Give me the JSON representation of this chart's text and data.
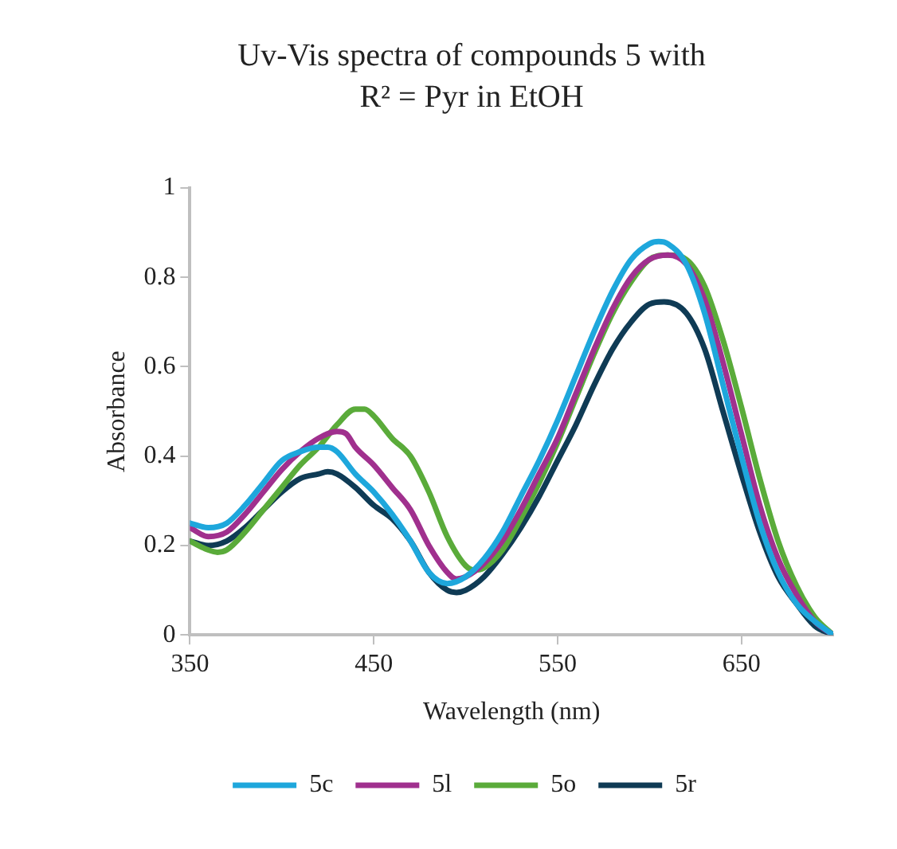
{
  "chart_data": {
    "type": "line",
    "title": "Uv-Vis spectra of compounds 5 with R² = Pyr in EtOH",
    "xlabel": "Wavelength (nm)",
    "ylabel": "Absorbance",
    "xlim": [
      350,
      700
    ],
    "xticks": [
      350,
      450,
      550,
      650
    ],
    "ylim": [
      0,
      1
    ],
    "yticks": [
      0,
      0.2,
      0.4,
      0.6,
      0.8,
      1
    ],
    "legend": "bottom",
    "marker": "none",
    "line_style": "solid",
    "series": [
      {
        "name": "5c",
        "color": "#1ea7dc",
        "x": [
          350,
          360,
          370,
          380,
          390,
          400,
          410,
          420,
          425,
          430,
          440,
          450,
          460,
          470,
          480,
          490,
          500,
          510,
          520,
          530,
          540,
          550,
          560,
          570,
          580,
          590,
          600,
          605,
          610,
          620,
          630,
          640,
          650,
          660,
          670,
          680,
          690,
          700
        ],
        "values": [
          0.25,
          0.24,
          0.25,
          0.29,
          0.34,
          0.39,
          0.41,
          0.42,
          0.42,
          0.41,
          0.36,
          0.32,
          0.27,
          0.21,
          0.14,
          0.115,
          0.13,
          0.17,
          0.23,
          0.31,
          0.39,
          0.48,
          0.58,
          0.68,
          0.77,
          0.84,
          0.875,
          0.88,
          0.875,
          0.83,
          0.72,
          0.56,
          0.4,
          0.25,
          0.14,
          0.07,
          0.03,
          0
        ]
      },
      {
        "name": "5l",
        "color": "#a0308e",
        "x": [
          350,
          360,
          370,
          380,
          390,
          400,
          410,
          420,
          430,
          435,
          440,
          450,
          460,
          470,
          480,
          490,
          495,
          500,
          510,
          520,
          530,
          540,
          550,
          560,
          570,
          580,
          590,
          600,
          610,
          620,
          630,
          640,
          650,
          660,
          670,
          680,
          690,
          700
        ],
        "values": [
          0.24,
          0.22,
          0.23,
          0.27,
          0.32,
          0.37,
          0.41,
          0.44,
          0.455,
          0.45,
          0.42,
          0.38,
          0.33,
          0.28,
          0.2,
          0.14,
          0.125,
          0.13,
          0.16,
          0.21,
          0.28,
          0.36,
          0.44,
          0.54,
          0.64,
          0.73,
          0.8,
          0.84,
          0.85,
          0.83,
          0.75,
          0.61,
          0.45,
          0.29,
          0.17,
          0.09,
          0.03,
          0
        ]
      },
      {
        "name": "5o",
        "color": "#5aab3a",
        "x": [
          350,
          360,
          365,
          370,
          380,
          390,
          400,
          410,
          420,
          430,
          440,
          445,
          450,
          460,
          470,
          480,
          490,
          500,
          505,
          510,
          520,
          530,
          540,
          550,
          560,
          570,
          580,
          590,
          600,
          610,
          620,
          630,
          640,
          650,
          660,
          670,
          680,
          690,
          700
        ],
        "values": [
          0.21,
          0.19,
          0.185,
          0.19,
          0.23,
          0.28,
          0.33,
          0.38,
          0.42,
          0.47,
          0.505,
          0.505,
          0.49,
          0.44,
          0.4,
          0.32,
          0.22,
          0.155,
          0.145,
          0.15,
          0.19,
          0.26,
          0.34,
          0.43,
          0.53,
          0.63,
          0.72,
          0.79,
          0.84,
          0.85,
          0.84,
          0.78,
          0.66,
          0.51,
          0.35,
          0.21,
          0.11,
          0.04,
          0
        ]
      },
      {
        "name": "5r",
        "color": "#0f3b55",
        "x": [
          350,
          360,
          370,
          380,
          390,
          400,
          410,
          420,
          425,
          430,
          440,
          450,
          460,
          470,
          480,
          490,
          495,
          500,
          510,
          520,
          530,
          540,
          550,
          560,
          570,
          580,
          590,
          600,
          608,
          620,
          630,
          640,
          650,
          660,
          670,
          680,
          690,
          700
        ],
        "values": [
          0.21,
          0.2,
          0.21,
          0.24,
          0.28,
          0.32,
          0.35,
          0.36,
          0.365,
          0.36,
          0.33,
          0.29,
          0.26,
          0.21,
          0.14,
          0.1,
          0.095,
          0.1,
          0.13,
          0.18,
          0.24,
          0.31,
          0.39,
          0.47,
          0.56,
          0.64,
          0.7,
          0.74,
          0.745,
          0.72,
          0.64,
          0.5,
          0.36,
          0.23,
          0.13,
          0.07,
          0.02,
          0
        ]
      }
    ]
  }
}
